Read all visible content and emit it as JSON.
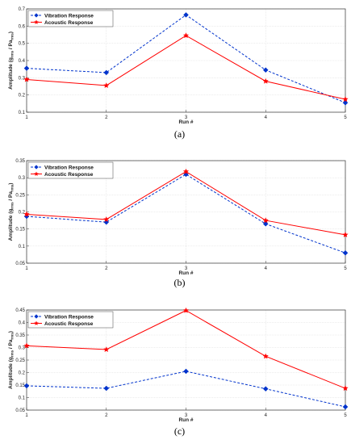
{
  "chart_data": [
    {
      "type": "line",
      "caption": "(a)",
      "xlabel": "Run #",
      "ylabel": "Amplitude (g",
      "ylabel_sub1": "rms",
      "ylabel_mid": " / Pa",
      "ylabel_sub2": "rms",
      "ylabel_end": ")",
      "x": [
        1,
        2,
        3,
        4,
        5
      ],
      "xlim": [
        1,
        5
      ],
      "ylim": [
        0.1,
        0.7
      ],
      "yticks": [
        0.1,
        0.2,
        0.3,
        0.4,
        0.5,
        0.6,
        0.7
      ],
      "ytick_labels": [
        "0.1",
        "0.2",
        "0.3",
        "0.4",
        "0.5",
        "0.6",
        "0.7"
      ],
      "grid": true,
      "legend": "top-left",
      "series": [
        {
          "name": "Vibration Response",
          "values": [
            0.355,
            0.33,
            0.665,
            0.345,
            0.155
          ],
          "color": "#0033cc",
          "style": "dashed",
          "marker": "diamond"
        },
        {
          "name": "Acoustic Response",
          "values": [
            0.29,
            0.255,
            0.545,
            0.28,
            0.175
          ],
          "color": "#ff0000",
          "style": "solid",
          "marker": "star"
        }
      ]
    },
    {
      "type": "line",
      "caption": "(b)",
      "xlabel": "Run #",
      "ylabel": "Amplitude (g",
      "ylabel_sub1": "rms",
      "ylabel_mid": " / Pa",
      "ylabel_sub2": "rms",
      "ylabel_end": ")",
      "x": [
        1,
        2,
        3,
        4,
        5
      ],
      "xlim": [
        1,
        5
      ],
      "ylim": [
        0.05,
        0.35
      ],
      "yticks": [
        0.05,
        0.1,
        0.15,
        0.2,
        0.25,
        0.3,
        0.35
      ],
      "ytick_labels": [
        "0.05",
        "0.1",
        "0.15",
        "0.2",
        "0.25",
        "0.3",
        "0.35"
      ],
      "grid": true,
      "legend": "top-left",
      "series": [
        {
          "name": "Vibration Response",
          "values": [
            0.187,
            0.17,
            0.31,
            0.165,
            0.08
          ],
          "color": "#0033cc",
          "style": "dashed",
          "marker": "diamond"
        },
        {
          "name": "Acoustic Response",
          "values": [
            0.193,
            0.178,
            0.318,
            0.175,
            0.133
          ],
          "color": "#ff0000",
          "style": "solid",
          "marker": "star"
        }
      ]
    },
    {
      "type": "line",
      "caption": "(c)",
      "xlabel": "Run #",
      "ylabel": "Amplitude (g",
      "ylabel_sub1": "rms",
      "ylabel_mid": " / Pa",
      "ylabel_sub2": "rms",
      "ylabel_end": ")",
      "x": [
        1,
        2,
        3,
        4,
        5
      ],
      "xlim": [
        1,
        5
      ],
      "ylim": [
        0.05,
        0.45
      ],
      "yticks": [
        0.05,
        0.1,
        0.15,
        0.2,
        0.25,
        0.3,
        0.35,
        0.4,
        0.45
      ],
      "ytick_labels": [
        "0.05",
        "0.1",
        "0.15",
        "0.2",
        "0.25",
        "0.3",
        "0.35",
        "0.4",
        "0.45"
      ],
      "grid": true,
      "legend": "top-left",
      "series": [
        {
          "name": "Vibration Response",
          "values": [
            0.147,
            0.137,
            0.205,
            0.135,
            0.063
          ],
          "color": "#0033cc",
          "style": "dashed",
          "marker": "diamond"
        },
        {
          "name": "Acoustic Response",
          "values": [
            0.307,
            0.292,
            0.448,
            0.265,
            0.137
          ],
          "color": "#ff0000",
          "style": "solid",
          "marker": "star"
        }
      ]
    }
  ]
}
